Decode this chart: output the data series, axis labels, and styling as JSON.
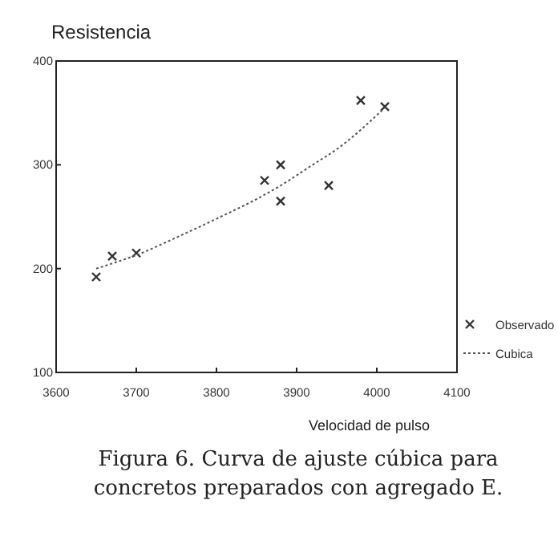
{
  "chart_data": {
    "type": "scatter",
    "ylabel": "Resistencia",
    "xlabel": "Velocidad de pulso",
    "annotations": [
      "Figura 6. Curva de ajuste cúbica para",
      "concretos preparados con agregado E."
    ],
    "xlim": [
      3600,
      4100
    ],
    "xticks": [
      3600,
      3700,
      3800,
      3900,
      4000,
      4100
    ],
    "ylim": [
      100,
      400
    ],
    "yticks": [
      100,
      200,
      300,
      400
    ],
    "grid": false,
    "legend": "bottom right",
    "series": [
      {
        "name": "Observado",
        "marker": "cross",
        "color": "#333333",
        "x": [
          3650,
          3670,
          3700,
          3860,
          3880,
          3880,
          3940,
          3980,
          4010
        ],
        "values": [
          192,
          212,
          215,
          285,
          300,
          265,
          280,
          362,
          356
        ]
      },
      {
        "name": "Cubica",
        "type": "line",
        "line_style": "dotted",
        "color": "#555555",
        "x": [
          3650,
          3670,
          3700,
          3750,
          3800,
          3850,
          3880,
          3920,
          3950,
          4010
        ],
        "values": [
          200,
          205,
          213,
          230,
          248,
          267,
          280,
          300,
          315,
          355
        ]
      }
    ]
  }
}
